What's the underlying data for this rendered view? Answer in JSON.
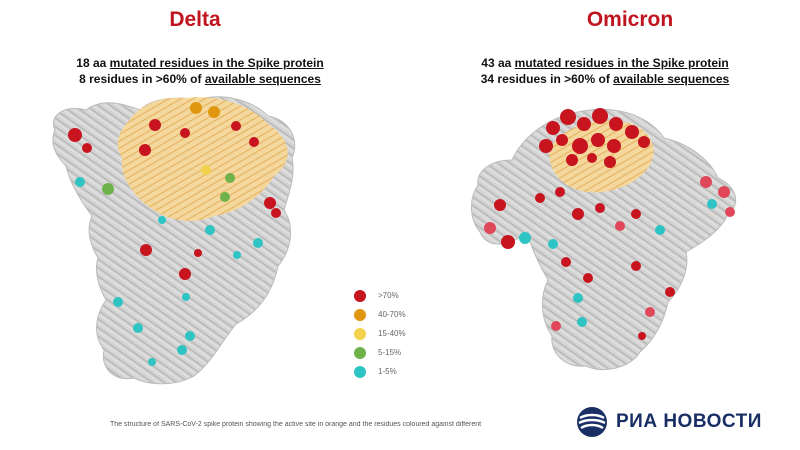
{
  "panels": [
    {
      "title": "Delta",
      "line1_prefix": "18 aa ",
      "line1_underlined": "mutated residues in the Spike protein",
      "line2_prefix": "8 residues in >60% of ",
      "line2_underlined": "available sequences"
    },
    {
      "title": "Omicron",
      "line1_prefix": "43 aa ",
      "line1_underlined": "mutated residues in the Spike protein",
      "line2_prefix": "34 residues in >60% of ",
      "line2_underlined": "available sequences"
    }
  ],
  "legend": [
    {
      "label": ">70%",
      "color": "#c8141e"
    },
    {
      "label": "40-70%",
      "color": "#e0960f"
    },
    {
      "label": "15-40%",
      "color": "#f2d24a"
    },
    {
      "label": "5-15%",
      "color": "#6db34a"
    },
    {
      "label": "1-5%",
      "color": "#2ec4c4"
    }
  ],
  "colors": {
    "title_red": "#c0141e",
    "protein_gray": "#c8c8c8",
    "active_site_orange": "#f0c878",
    "logo_blue": "#1a2e66"
  },
  "caption": "The structure of SARS-CoV-2 spike protein showing the active site in orange and the residues coloured against different",
  "logo": {
    "text": "РИА НОВОСТИ",
    "icon": "ria-globe-icon"
  }
}
